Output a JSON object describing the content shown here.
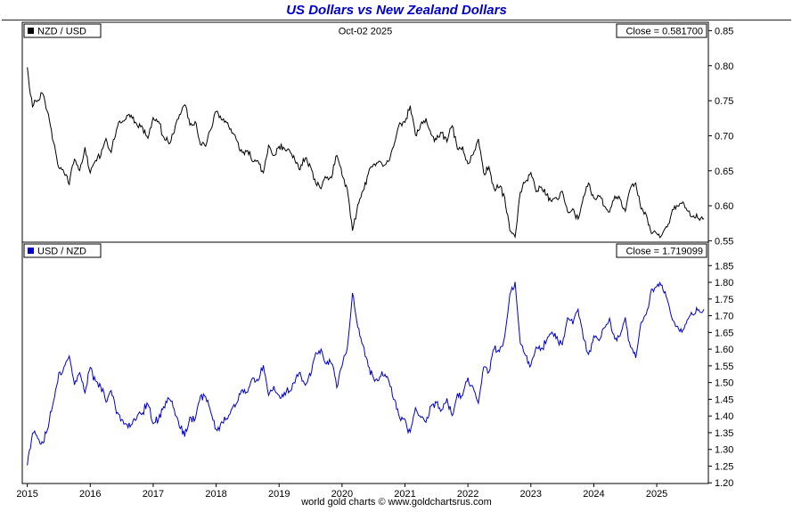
{
  "title": "US Dollars vs New Zealand Dollars",
  "title_color": "#0000CC",
  "footer": "world gold charts © www.goldchartsrus.com",
  "x_axis": {
    "year_labels": [
      "2015",
      "2016",
      "2017",
      "2018",
      "2019",
      "2020",
      "2021",
      "2022",
      "2023",
      "2024",
      "2025"
    ]
  },
  "chart_data": [
    {
      "type": "line",
      "panel": "top",
      "legend": "NZD / USD",
      "date_label": "Oct-02 2025",
      "close_label": "Close = 0.581700",
      "close_value": 0.5817,
      "line_color": "#000000",
      "x_start": "2015-01",
      "x_end": "2025-10",
      "x_interval": "monthly",
      "ylim": [
        0.548,
        0.862
      ],
      "yticks": [
        "0.85",
        "0.80",
        "0.75",
        "0.70",
        "0.65",
        "0.60",
        "0.55"
      ],
      "values": [
        0.796,
        0.74,
        0.752,
        0.76,
        0.73,
        0.69,
        0.655,
        0.648,
        0.632,
        0.668,
        0.652,
        0.682,
        0.648,
        0.665,
        0.672,
        0.695,
        0.676,
        0.71,
        0.72,
        0.728,
        0.726,
        0.715,
        0.71,
        0.695,
        0.725,
        0.72,
        0.7,
        0.687,
        0.705,
        0.73,
        0.745,
        0.716,
        0.72,
        0.686,
        0.685,
        0.71,
        0.735,
        0.724,
        0.72,
        0.705,
        0.694,
        0.676,
        0.68,
        0.662,
        0.664,
        0.646,
        0.685,
        0.672,
        0.684,
        0.681,
        0.679,
        0.666,
        0.652,
        0.669,
        0.656,
        0.631,
        0.626,
        0.641,
        0.641,
        0.673,
        0.645,
        0.625,
        0.565,
        0.6,
        0.62,
        0.645,
        0.661,
        0.662,
        0.656,
        0.665,
        0.69,
        0.718,
        0.72,
        0.742,
        0.7,
        0.716,
        0.725,
        0.7,
        0.696,
        0.706,
        0.69,
        0.716,
        0.681,
        0.684,
        0.661,
        0.674,
        0.694,
        0.646,
        0.654,
        0.624,
        0.628,
        0.611,
        0.566,
        0.556,
        0.619,
        0.634,
        0.646,
        0.621,
        0.625,
        0.616,
        0.606,
        0.611,
        0.621,
        0.591,
        0.596,
        0.581,
        0.613,
        0.631,
        0.611,
        0.614,
        0.6,
        0.591,
        0.614,
        0.611,
        0.591,
        0.624,
        0.634,
        0.596,
        0.586,
        0.561,
        0.56,
        0.557,
        0.571,
        0.594,
        0.599,
        0.604,
        0.591,
        0.586,
        0.581,
        0.5817
      ]
    },
    {
      "type": "line",
      "panel": "bottom",
      "legend": "USD / NZD",
      "close_label": "Close = 1.719099",
      "close_value": 1.719099,
      "line_color": "#0000CD",
      "x_start": "2015-01",
      "x_end": "2025-10",
      "x_interval": "monthly",
      "ylim": [
        1.198,
        1.92
      ],
      "yticks": [
        "1.85",
        "1.80",
        "1.75",
        "1.70",
        "1.65",
        "1.60",
        "1.55",
        "1.50",
        "1.45",
        "1.40",
        "1.35",
        "1.30",
        "1.25",
        "1.20"
      ],
      "values": [
        1.256,
        1.351,
        1.33,
        1.316,
        1.37,
        1.449,
        1.527,
        1.543,
        1.582,
        1.497,
        1.534,
        1.466,
        1.543,
        1.504,
        1.488,
        1.439,
        1.479,
        1.408,
        1.389,
        1.374,
        1.377,
        1.399,
        1.408,
        1.439,
        1.379,
        1.389,
        1.429,
        1.456,
        1.418,
        1.37,
        1.342,
        1.397,
        1.389,
        1.458,
        1.46,
        1.408,
        1.361,
        1.381,
        1.389,
        1.418,
        1.441,
        1.479,
        1.471,
        1.511,
        1.506,
        1.548,
        1.46,
        1.488,
        1.462,
        1.468,
        1.473,
        1.502,
        1.534,
        1.495,
        1.524,
        1.585,
        1.597,
        1.56,
        1.56,
        1.486,
        1.55,
        1.6,
        1.77,
        1.667,
        1.613,
        1.55,
        1.513,
        1.511,
        1.524,
        1.504,
        1.449,
        1.393,
        1.389,
        1.348,
        1.429,
        1.397,
        1.379,
        1.429,
        1.437,
        1.416,
        1.449,
        1.397,
        1.468,
        1.462,
        1.513,
        1.484,
        1.441,
        1.548,
        1.529,
        1.603,
        1.592,
        1.637,
        1.767,
        1.799,
        1.616,
        1.577,
        1.548,
        1.61,
        1.6,
        1.623,
        1.65,
        1.637,
        1.61,
        1.692,
        1.678,
        1.721,
        1.631,
        1.585,
        1.637,
        1.629,
        1.667,
        1.692,
        1.629,
        1.637,
        1.692,
        1.603,
        1.577,
        1.678,
        1.706,
        1.783,
        1.786,
        1.795,
        1.751,
        1.684,
        1.669,
        1.656,
        1.692,
        1.706,
        1.721,
        1.719
      ]
    }
  ]
}
